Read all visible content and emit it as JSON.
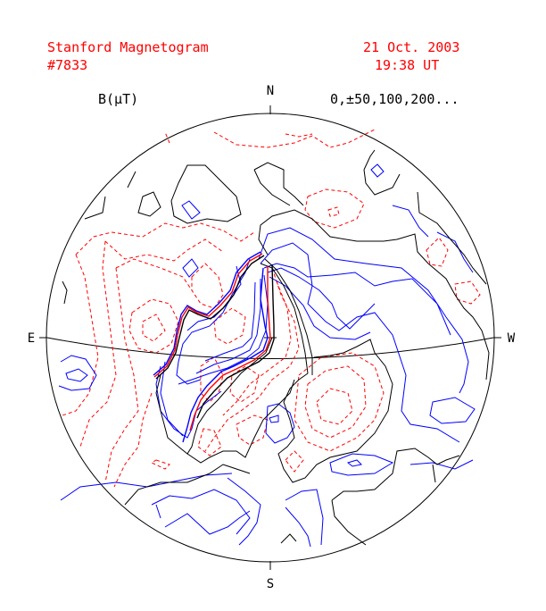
{
  "header": {
    "title": "Stanford Magnetogram",
    "date": "21 Oct. 2003",
    "image_number": "#7833",
    "time": "19:38 UT"
  },
  "legend": {
    "units_label": "B(μT)",
    "contour_levels": "0,±50,100,200..."
  },
  "compass": {
    "north": "N",
    "south": "S",
    "east": "E",
    "west": "W"
  },
  "colors": {
    "header_text": "#ff0000",
    "neutral_line": "#000000",
    "positive_polarity": "#0000ff",
    "negative_polarity": "#ff0000"
  }
}
